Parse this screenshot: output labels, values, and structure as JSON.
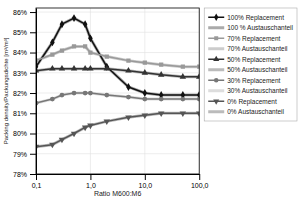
{
  "chart_data": {
    "type": "line",
    "xlabel": "Ratio M600:M6",
    "ylabel": "Packing density/Packungsdichte  [m³/m³]",
    "log": "x",
    "grid": true,
    "legend": "upper right",
    "xlim": [
      0.1,
      100.0
    ],
    "ylim": [
      0.78,
      0.862
    ],
    "xticks": [
      {
        "value": 0.1,
        "label": "0,1"
      },
      {
        "value": 1.0,
        "label": "1,0"
      },
      {
        "value": 10.0,
        "label": "10,0"
      },
      {
        "value": 100.0,
        "label": "100,0"
      }
    ],
    "yticks": [
      {
        "value": 0.78,
        "label": "78%"
      },
      {
        "value": 0.79,
        "label": "79%"
      },
      {
        "value": 0.8,
        "label": "80%"
      },
      {
        "value": 0.81,
        "label": "81%"
      },
      {
        "value": 0.82,
        "label": "82%"
      },
      {
        "value": 0.83,
        "label": "83%"
      },
      {
        "value": 0.84,
        "label": "84%"
      },
      {
        "value": 0.85,
        "label": "85%"
      },
      {
        "value": 0.86,
        "label": "86%"
      }
    ],
    "x": [
      0.1,
      0.2,
      0.3,
      0.5,
      0.8,
      1.0,
      2.0,
      5.0,
      10.0,
      20.0,
      50.0,
      100.0
    ],
    "series": [
      {
        "name": "100% Replacement",
        "color": "#111111",
        "marker": "diamond",
        "values": [
          0.833,
          0.845,
          0.854,
          0.857,
          0.854,
          0.847,
          0.833,
          0.823,
          0.82,
          0.819,
          0.819,
          0.819
        ]
      },
      {
        "name": "100 % Austauschanteil",
        "color": "#aaaaaa",
        "values": [
          0.833,
          0.845,
          0.854,
          0.857,
          0.854,
          0.847,
          0.833,
          0.823,
          0.82,
          0.819,
          0.819,
          0.819
        ]
      },
      {
        "name": "70% Replacement",
        "color": "#999999",
        "marker": "square",
        "values": [
          0.836,
          0.839,
          0.841,
          0.843,
          0.843,
          0.84,
          0.838,
          0.836,
          0.835,
          0.834,
          0.833,
          0.833
        ]
      },
      {
        "name": "70% Austauschanteil",
        "color": "#cccccc",
        "values": [
          0.836,
          0.839,
          0.841,
          0.843,
          0.843,
          0.84,
          0.838,
          0.836,
          0.835,
          0.834,
          0.833,
          0.833
        ]
      },
      {
        "name": "50% Replacement",
        "color": "#333333",
        "marker": "triangle-up",
        "values": [
          0.831,
          0.832,
          0.832,
          0.832,
          0.832,
          0.832,
          0.832,
          0.831,
          0.83,
          0.829,
          0.828,
          0.828
        ]
      },
      {
        "name": "50% Austauschanteil",
        "color": "#bbbbbb",
        "values": [
          0.831,
          0.832,
          0.832,
          0.832,
          0.832,
          0.832,
          0.832,
          0.831,
          0.83,
          0.829,
          0.828,
          0.828
        ]
      },
      {
        "name": "30% Replacement",
        "color": "#777777",
        "marker": "circle",
        "values": [
          0.815,
          0.817,
          0.819,
          0.82,
          0.82,
          0.82,
          0.819,
          0.818,
          0.817,
          0.817,
          0.817,
          0.817
        ]
      },
      {
        "name": "30% Austauschanteil",
        "color": "#dddddd",
        "values": [
          0.815,
          0.817,
          0.819,
          0.82,
          0.82,
          0.82,
          0.819,
          0.818,
          0.817,
          0.817,
          0.817,
          0.817
        ]
      },
      {
        "name": "0% Replacement",
        "color": "#555555",
        "marker": "triangle-down",
        "values": [
          0.7935,
          0.7945,
          0.797,
          0.8,
          0.803,
          0.804,
          0.806,
          0.808,
          0.809,
          0.81,
          0.81,
          0.81
        ]
      },
      {
        "name": "0% Austauschanteil",
        "color": "#bbbbbb",
        "values": [
          0.7935,
          0.7945,
          0.797,
          0.8,
          0.803,
          0.804,
          0.806,
          0.808,
          0.809,
          0.81,
          0.81,
          0.81
        ]
      }
    ]
  }
}
